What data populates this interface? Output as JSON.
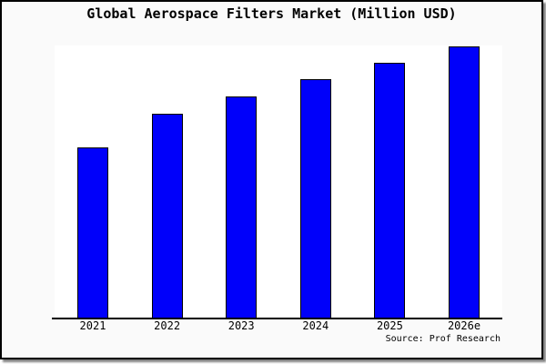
{
  "chart": {
    "title": "Global Aerospace Filters Market (Million USD)",
    "source": "Source: Prof Research",
    "bar_color": "#0000fa",
    "bar_border_color": "#000000",
    "frame_background": "#fafafa",
    "plot_background": "#ffffff",
    "axis_color": "#000000"
  },
  "chart_data": {
    "type": "bar",
    "title": "Global Aerospace Filters Market (Million USD)",
    "categories": [
      "2021",
      "2022",
      "2023",
      "2024",
      "2025",
      "2026e"
    ],
    "values": [
      188,
      225,
      244,
      263,
      281,
      299
    ],
    "value_note": "No y-axis or value labels shown; values are relative bar heights (px) estimated from the plot, baseline = 0",
    "xlabel": "",
    "ylabel": "",
    "ylim": [
      0,
      300
    ],
    "grid": false,
    "legend": null,
    "annotations": [
      "Source: Prof Research"
    ]
  }
}
